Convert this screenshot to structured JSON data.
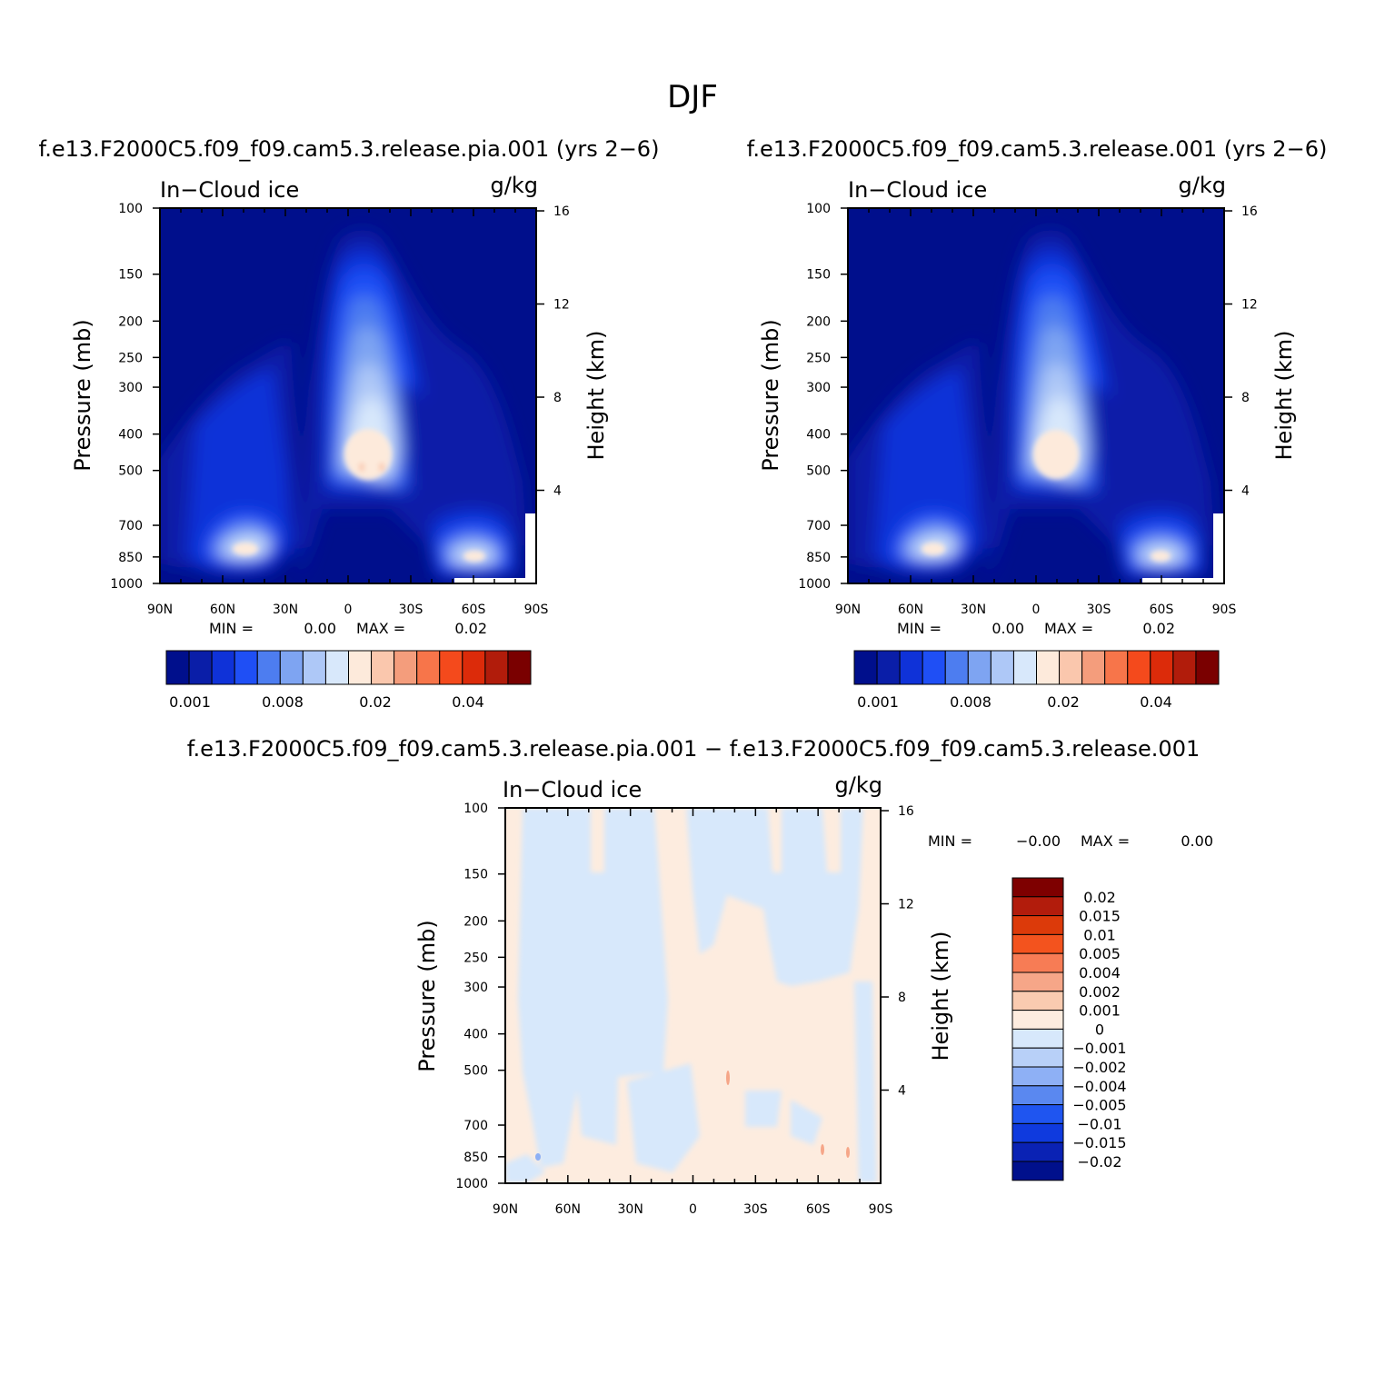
{
  "figure": {
    "season": "DJF",
    "diff_title": "f.e13.F2000C5.f09_f09.cam5.3.release.pia.001 − f.e13.F2000C5.f09_f09.cam5.3.release.001"
  },
  "colors": {
    "abs_palette": [
      "#000f8c",
      "#0a1ea8",
      "#0f32d8",
      "#1f4ff5",
      "#4d7df0",
      "#7ea4f2",
      "#aec8f7",
      "#d8e8fb",
      "#fdeadb",
      "#fac7ad",
      "#f49d7c",
      "#f7754a",
      "#f44a1c",
      "#dc2b0a",
      "#b11c0b",
      "#7a0000"
    ],
    "diff_palette": [
      "#00108c",
      "#0a22b4",
      "#0f3ade",
      "#1f55f0",
      "#5a88f0",
      "#8eb0f5",
      "#b8d0f8",
      "#d7e8fb",
      "#fdecdf",
      "#facbb0",
      "#f6a688",
      "#f77c55",
      "#f3531e",
      "#dc3a0a",
      "#b21c0c",
      "#7e0000"
    ]
  },
  "chart_data": [
    {
      "type": "heatmap",
      "title": "f.e13.F2000C5.f09_f09.cam5.3.release.pia.001 (yrs 2−6)",
      "left_label": "In−Cloud ice",
      "units": "g/kg",
      "ylabel": "Pressure (mb)",
      "ylabel_right": "Height (km)",
      "x_ticks": [
        "90N",
        "60N",
        "30N",
        "0",
        "30S",
        "60S",
        "90S"
      ],
      "y_ticks": [
        "100",
        "150",
        "200",
        "250",
        "300",
        "400",
        "500",
        "700",
        "850",
        "1000"
      ],
      "right_ticks": [
        "16",
        "12",
        "8",
        "4"
      ],
      "stats": {
        "min_label": "MIN =",
        "min": "0.00",
        "max_label": "MAX =",
        "max": "0.02"
      },
      "colorbar_labels": [
        "0.001",
        "0.008",
        "0.02",
        "0.04"
      ],
      "ylim": [
        1000,
        100
      ],
      "features": [
        {
          "name": "tropical ice column",
          "lat_center": -5,
          "p_top": 125,
          "p_bottom": 600,
          "max": 0.02
        },
        {
          "name": "NH midlatitude low ice",
          "lat_center": 52,
          "p_top": 650,
          "p_bottom": 950,
          "max": 0.02
        },
        {
          "name": "SH midlatitude low ice",
          "lat_center": -58,
          "p_top": 700,
          "p_bottom": 950,
          "max": 0.02
        }
      ]
    },
    {
      "type": "heatmap",
      "title": "f.e13.F2000C5.f09_f09.cam5.3.release.001 (yrs 2−6)",
      "left_label": "In−Cloud ice",
      "units": "g/kg",
      "ylabel": "Pressure (mb)",
      "ylabel_right": "Height (km)",
      "x_ticks": [
        "90N",
        "60N",
        "30N",
        "0",
        "30S",
        "60S",
        "90S"
      ],
      "y_ticks": [
        "100",
        "150",
        "200",
        "250",
        "300",
        "400",
        "500",
        "700",
        "850",
        "1000"
      ],
      "right_ticks": [
        "16",
        "12",
        "8",
        "4"
      ],
      "stats": {
        "min_label": "MIN =",
        "min": "0.00",
        "max_label": "MAX =",
        "max": "0.02"
      },
      "colorbar_labels": [
        "0.001",
        "0.008",
        "0.02",
        "0.04"
      ],
      "ylim": [
        1000,
        100
      ]
    },
    {
      "type": "heatmap",
      "title": "",
      "left_label": "In−Cloud ice",
      "units": "g/kg",
      "ylabel": "Pressure (mb)",
      "ylabel_right": "Height (km)",
      "x_ticks": [
        "90N",
        "60N",
        "30N",
        "0",
        "30S",
        "60S",
        "90S"
      ],
      "y_ticks": [
        "100",
        "150",
        "200",
        "250",
        "300",
        "400",
        "500",
        "700",
        "850",
        "1000"
      ],
      "right_ticks": [
        "16",
        "12",
        "8",
        "4"
      ],
      "stats": {
        "min_label": "MIN =",
        "min": "−0.00",
        "max_label": "MAX =",
        "max": "0.00"
      },
      "colorbar_labels": [
        "0.02",
        "0.015",
        "0.01",
        "0.005",
        "0.004",
        "0.002",
        "0.001",
        "0",
        "−0.001",
        "−0.002",
        "−0.004",
        "−0.005",
        "−0.01",
        "−0.015",
        "−0.02"
      ],
      "ylim": [
        1000,
        100
      ]
    }
  ]
}
